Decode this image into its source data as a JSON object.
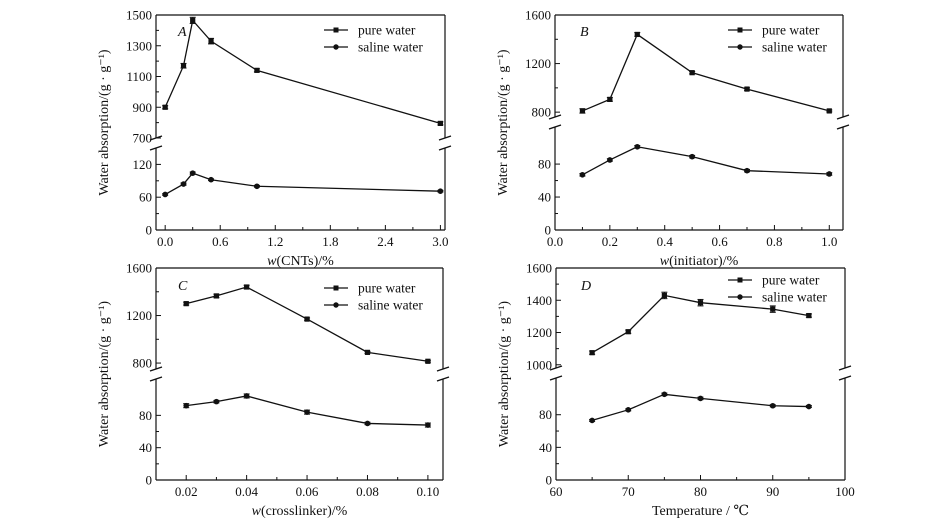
{
  "chart_data": [
    {
      "type": "line",
      "panel_label": "A",
      "xlabel": "w(CNTs)/%",
      "xlabel_italic_prefix": "w",
      "xlabel_rest": "(CNTs)/%",
      "ylabel": "Water absorption/(g · g⁻¹)",
      "xlim": [
        -0.1,
        3.05
      ],
      "xticks": [
        0.0,
        0.6,
        1.2,
        1.8,
        2.4,
        3.0
      ],
      "xtick_labels": [
        "0.0",
        "0.6",
        "1.2",
        "1.8",
        "2.4",
        "3.0"
      ],
      "axis_break": true,
      "y_upper": {
        "range": [
          700,
          1500
        ],
        "ticks": [
          700,
          900,
          1100,
          1300,
          1500
        ],
        "tick_labels": [
          "700",
          "900",
          "1100",
          "1300",
          "1500"
        ]
      },
      "y_lower": {
        "range": [
          0,
          150
        ],
        "ticks": [
          0,
          60,
          120
        ],
        "tick_labels": [
          "0",
          "60",
          "120"
        ]
      },
      "legend_position": "top-right",
      "series": [
        {
          "name": "pure water",
          "segment": "upper",
          "x": [
            0.0,
            0.2,
            0.3,
            0.5,
            1.0,
            3.0
          ],
          "y": [
            900,
            1170,
            1465,
            1330,
            1140,
            795
          ],
          "err": [
            10,
            15,
            20,
            18,
            10,
            10
          ]
        },
        {
          "name": "saline water",
          "segment": "lower",
          "x": [
            0.0,
            0.2,
            0.3,
            0.5,
            1.0,
            3.0
          ],
          "y": [
            65,
            84,
            104,
            92,
            80,
            71
          ],
          "err": [
            1.5,
            2,
            2,
            1.5,
            1.5,
            1.5
          ]
        }
      ]
    },
    {
      "type": "line",
      "panel_label": "B",
      "xlabel": "w(initiator)/%",
      "xlabel_italic_prefix": "w",
      "xlabel_rest": "(initiator)/%",
      "ylabel": "Water absorption/(g · g⁻¹)",
      "xlim": [
        0.0,
        1.05
      ],
      "xticks": [
        0.0,
        0.2,
        0.4,
        0.6,
        0.8,
        1.0
      ],
      "xtick_labels": [
        "0.0",
        "0.2",
        "0.4",
        "0.6",
        "0.8",
        "1.0"
      ],
      "axis_break": true,
      "y_upper": {
        "range": [
          760,
          1600
        ],
        "ticks": [
          800,
          1200,
          1600
        ],
        "tick_labels": [
          "800",
          "1200",
          "1600"
        ]
      },
      "y_lower": {
        "range": [
          0,
          125
        ],
        "ticks": [
          0,
          40,
          80
        ],
        "tick_labels": [
          "0",
          "40",
          "80"
        ]
      },
      "legend_position": "top-right",
      "series": [
        {
          "name": "pure water",
          "segment": "upper",
          "x": [
            0.1,
            0.2,
            0.3,
            0.5,
            0.7,
            1.0
          ],
          "y": [
            810,
            905,
            1440,
            1125,
            990,
            810
          ],
          "err": [
            18,
            15,
            15,
            10,
            10,
            8
          ]
        },
        {
          "name": "saline water",
          "segment": "lower",
          "x": [
            0.1,
            0.2,
            0.3,
            0.5,
            0.7,
            1.0
          ],
          "y": [
            67,
            85,
            101,
            89,
            72,
            68
          ],
          "err": [
            1.5,
            1.5,
            1.5,
            1.5,
            1.5,
            1.5
          ]
        }
      ]
    },
    {
      "type": "line",
      "panel_label": "C",
      "xlabel": "w(crosslinker)/%",
      "xlabel_italic_prefix": "w",
      "xlabel_rest": "(crosslinker)/%",
      "ylabel": "Water absorption/(g · g⁻¹)",
      "xlim": [
        0.01,
        0.105
      ],
      "xticks": [
        0.02,
        0.04,
        0.06,
        0.08,
        0.1
      ],
      "xtick_labels": [
        "0.02",
        "0.04",
        "0.06",
        "0.08",
        "0.10"
      ],
      "axis_break": true,
      "y_upper": {
        "range": [
          750,
          1600
        ],
        "ticks": [
          800,
          1200,
          1600
        ],
        "tick_labels": [
          "800",
          "1200",
          "1600"
        ]
      },
      "y_lower": {
        "range": [
          0,
          125
        ],
        "ticks": [
          0,
          40,
          80
        ],
        "tick_labels": [
          "0",
          "40",
          "80"
        ]
      },
      "legend_position": "top-right",
      "series": [
        {
          "name": "pure water",
          "segment": "upper",
          "x": [
            0.02,
            0.03,
            0.04,
            0.06,
            0.08,
            0.1
          ],
          "y": [
            1300,
            1365,
            1440,
            1170,
            890,
            815
          ],
          "err": [
            12,
            15,
            15,
            10,
            8,
            8
          ]
        },
        {
          "name": "saline water",
          "segment": "lower",
          "x": [
            0.02,
            0.03,
            0.04,
            0.06,
            0.08,
            0.1
          ],
          "y": [
            92,
            97,
            104,
            84,
            70,
            68
          ],
          "err": [
            2.5,
            1.5,
            2.5,
            2.5,
            1.5,
            2.5
          ]
        }
      ]
    },
    {
      "type": "line",
      "panel_label": "D",
      "xlabel": "Temperature / ℃",
      "ylabel": "Water absorption/(g · g⁻¹)",
      "xlim": [
        60,
        100
      ],
      "xticks": [
        60,
        70,
        80,
        90,
        100
      ],
      "xtick_labels": [
        "60",
        "70",
        "80",
        "90",
        "100"
      ],
      "axis_break": true,
      "y_upper": {
        "range": [
          980,
          1600
        ],
        "ticks": [
          1000,
          1200,
          1400,
          1600
        ],
        "tick_labels": [
          "1000",
          "1200",
          "1400",
          "1600"
        ]
      },
      "y_lower": {
        "range": [
          0,
          125
        ],
        "ticks": [
          0,
          40,
          80
        ],
        "tick_labels": [
          "0",
          "40",
          "80"
        ]
      },
      "legend_position": "top-right",
      "series": [
        {
          "name": "pure water",
          "segment": "upper",
          "x": [
            65,
            70,
            75,
            80,
            90,
            95
          ],
          "y": [
            1075,
            1205,
            1430,
            1385,
            1345,
            1305
          ],
          "err": [
            10,
            10,
            20,
            20,
            20,
            10
          ]
        },
        {
          "name": "saline water",
          "segment": "lower",
          "x": [
            65,
            70,
            75,
            80,
            90,
            95
          ],
          "y": [
            73,
            86,
            105,
            100,
            91,
            90
          ],
          "err": [
            1.2,
            1.2,
            1.5,
            1.5,
            1.2,
            1.2
          ]
        }
      ]
    }
  ]
}
